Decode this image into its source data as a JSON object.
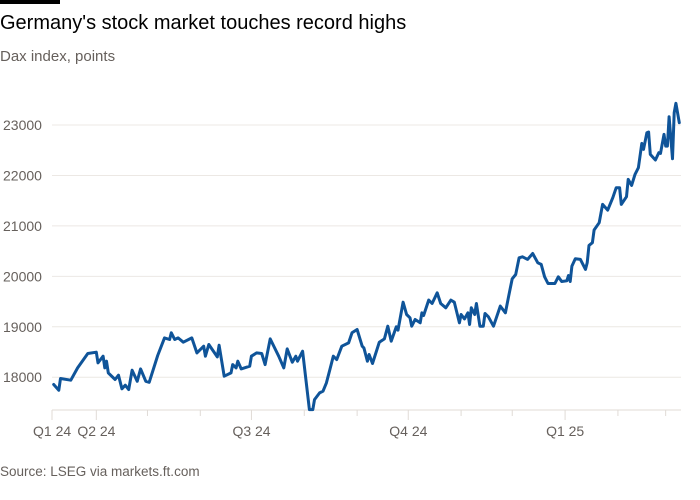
{
  "title": "Germany's stock market touches record highs",
  "subtitle": "Dax index, points",
  "source": "Source: LSEG via markets.ft.com",
  "colors": {
    "line": "#0f5499",
    "grid": "#ece8e4",
    "text": "#66605c",
    "background": "#ffffff"
  },
  "chart_data": {
    "type": "line",
    "title": "Germany's stock market touches record highs",
    "subtitle": "Dax index, points",
    "xlabel": "",
    "ylabel": "",
    "xlim": [
      "2024-03-06",
      "2025-03-10"
    ],
    "ylim": [
      17350,
      23600
    ],
    "grid": true,
    "y_ticks": [
      18000,
      19000,
      20000,
      21000,
      22000,
      23000
    ],
    "x_ticks": [
      {
        "date": "2024-03-06",
        "label": "Q1 24"
      },
      {
        "date": "2024-04-01",
        "label": "Q2 24"
      },
      {
        "date": "2024-07-01",
        "label": "Q3 24"
      },
      {
        "date": "2024-10-01",
        "label": "Q4 24"
      },
      {
        "date": "2025-01-01",
        "label": "Q1 25"
      }
    ],
    "x_minor_ticks": [
      "2024-05-01",
      "2024-06-01",
      "2024-08-01",
      "2024-09-01",
      "2024-11-01",
      "2024-12-01",
      "2025-02-01",
      "2025-03-01"
    ],
    "series": [
      {
        "x": [
          "2024-03-07",
          "2024-03-10",
          "2024-03-11",
          "2024-03-17",
          "2024-03-21",
          "2024-03-27",
          "2024-04-01",
          "2024-04-02",
          "2024-04-05",
          "2024-04-06",
          "2024-04-07",
          "2024-04-08",
          "2024-04-12",
          "2024-04-14",
          "2024-04-16",
          "2024-04-18",
          "2024-04-20",
          "2024-04-22",
          "2024-04-25",
          "2024-04-27",
          "2024-04-30",
          "2024-05-02",
          "2024-05-07",
          "2024-05-11",
          "2024-05-14",
          "2024-05-15",
          "2024-05-17",
          "2024-05-19",
          "2024-05-22",
          "2024-05-27",
          "2024-05-30",
          "2024-06-03",
          "2024-06-04",
          "2024-06-06",
          "2024-06-11",
          "2024-06-12",
          "2024-06-15",
          "2024-06-19",
          "2024-06-20",
          "2024-06-22",
          "2024-06-23",
          "2024-06-25",
          "2024-06-30",
          "2024-07-01",
          "2024-07-04",
          "2024-07-07",
          "2024-07-09",
          "2024-07-12",
          "2024-07-17",
          "2024-07-20",
          "2024-07-22",
          "2024-07-25",
          "2024-07-27",
          "2024-07-28",
          "2024-07-31",
          "2024-08-04",
          "2024-08-06",
          "2024-08-07",
          "2024-08-10",
          "2024-08-12",
          "2024-08-14",
          "2024-08-16",
          "2024-08-18",
          "2024-08-20",
          "2024-08-23",
          "2024-08-27",
          "2024-08-29",
          "2024-09-01",
          "2024-09-04",
          "2024-09-05",
          "2024-09-07",
          "2024-09-08",
          "2024-09-10",
          "2024-09-14",
          "2024-09-17",
          "2024-09-19",
          "2024-09-21",
          "2024-09-24",
          "2024-09-25",
          "2024-09-28",
          "2024-09-30",
          "2024-10-02",
          "2024-10-03",
          "2024-10-05",
          "2024-10-08",
          "2024-10-09",
          "2024-10-10",
          "2024-10-13",
          "2024-10-15",
          "2024-10-18",
          "2024-10-20",
          "2024-10-23",
          "2024-10-26",
          "2024-10-28",
          "2024-10-31",
          "2024-11-01",
          "2024-11-03",
          "2024-11-05",
          "2024-11-06",
          "2024-11-07",
          "2024-11-09",
          "2024-11-10",
          "2024-11-12",
          "2024-11-14",
          "2024-11-15",
          "2024-11-17",
          "2024-11-20",
          "2024-11-23",
          "2024-11-24",
          "2024-11-27",
          "2024-11-29",
          "2024-12-01",
          "2024-12-03",
          "2024-12-05",
          "2024-12-07",
          "2024-12-10",
          "2024-12-13",
          "2024-12-16",
          "2024-12-18",
          "2024-12-20",
          "2024-12-22",
          "2024-12-26",
          "2024-12-28",
          "2024-12-30",
          "2025-01-02",
          "2025-01-03",
          "2025-01-04",
          "2025-01-05",
          "2025-01-07",
          "2025-01-10",
          "2025-01-13",
          "2025-01-14",
          "2025-01-15",
          "2025-01-17",
          "2025-01-18",
          "2025-01-21",
          "2025-01-23",
          "2025-01-26",
          "2025-01-29",
          "2025-01-31",
          "2025-02-02",
          "2025-02-03",
          "2025-02-06",
          "2025-02-07",
          "2025-02-09",
          "2025-02-11",
          "2025-02-13",
          "2025-02-15",
          "2025-02-16",
          "2025-02-18",
          "2025-02-19",
          "2025-02-20",
          "2025-02-23",
          "2025-02-25",
          "2025-02-26",
          "2025-02-28",
          "2025-03-01",
          "2025-03-02",
          "2025-03-03",
          "2025-03-05",
          "2025-03-06",
          "2025-03-07",
          "2025-03-09"
        ],
        "values": [
          17855,
          17742,
          17974,
          17940,
          18185,
          18470,
          18496,
          18284,
          18417,
          18185,
          18317,
          18086,
          17954,
          18040,
          17770,
          17841,
          17755,
          18140,
          17920,
          18165,
          17920,
          17900,
          18430,
          18780,
          18747,
          18880,
          18747,
          18780,
          18694,
          18780,
          18483,
          18615,
          18417,
          18648,
          18403,
          18635,
          18020,
          18086,
          18251,
          18185,
          18317,
          18165,
          18218,
          18417,
          18483,
          18470,
          18251,
          18760,
          18417,
          18185,
          18562,
          18298,
          18417,
          18317,
          18516,
          17358,
          17358,
          17557,
          17689,
          17722,
          17888,
          18152,
          18417,
          18350,
          18615,
          18681,
          18880,
          18946,
          18615,
          18582,
          18317,
          18450,
          18271,
          18694,
          18760,
          19012,
          18714,
          18999,
          18933,
          19488,
          19243,
          19177,
          19012,
          19144,
          19078,
          19277,
          19224,
          19528,
          19462,
          19673,
          19462,
          19376,
          19528,
          19488,
          19078,
          19243,
          19157,
          19277,
          19045,
          19376,
          19243,
          19462,
          19012,
          19012,
          19263,
          19197,
          19012,
          19310,
          19409,
          19277,
          19620,
          19951,
          20037,
          20368,
          20388,
          20335,
          20453,
          20269,
          20236,
          19991,
          19859,
          19859,
          19991,
          19898,
          19911,
          20017,
          19898,
          20202,
          20348,
          20335,
          20137,
          20269,
          20613,
          20666,
          20918,
          21063,
          21426,
          21314,
          21559,
          21757,
          21757,
          21426,
          21578,
          21922,
          21803,
          22021,
          22154,
          22636,
          22517,
          22848,
          22861,
          22418,
          22306,
          22451,
          22438,
          22815,
          22583,
          22583,
          23165,
          22332,
          23245,
          23430,
          23046
        ]
      }
    ]
  }
}
